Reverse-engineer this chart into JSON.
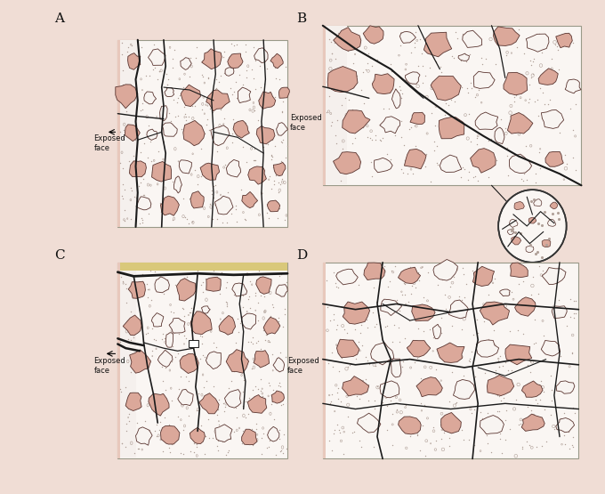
{
  "bg_color": "#f0ddd5",
  "matrix_bg": "#faf6f3",
  "agg_fill_pink": "#dba89a",
  "agg_fill_white": "#f8f4f1",
  "agg_edge": "#5a3530",
  "crack_color": "#1a1a1a",
  "border_color": "#999988",
  "label_color": "#111111",
  "exposed_strip_color": "#e8c8bc",
  "dot_color": "#b0a098",
  "panel_labels": [
    "A",
    "B",
    "C",
    "D"
  ],
  "exposed_face_text": "Exposed\nface"
}
